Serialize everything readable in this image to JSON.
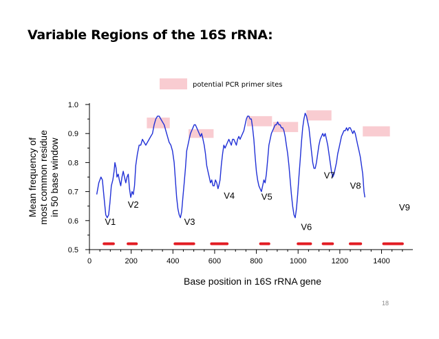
{
  "slide": {
    "title": "Variable Regions of the 16S rRNA:",
    "number": "18"
  },
  "colors": {
    "line": "#1f2fd6",
    "primer_bar": "#e21b22",
    "primer_box": "#f9ccd1",
    "axis": "#000000"
  },
  "chart_data": {
    "type": "line",
    "title": "",
    "xlabel": "Base position in 16S rRNA gene",
    "ylabel_lines": [
      "Mean frequency of",
      "most common residue",
      "in 50 base window"
    ],
    "xlim": [
      0,
      1550
    ],
    "ylim": [
      0.5,
      1.0
    ],
    "x_ticks": [
      0,
      200,
      400,
      600,
      800,
      1000,
      1200,
      1400
    ],
    "x_tick_labels": [
      "0",
      "200",
      "400",
      "600",
      "800",
      "1000",
      "1200",
      "1400"
    ],
    "y_ticks": [
      0.5,
      0.6,
      0.7,
      0.8,
      0.9,
      1.0
    ],
    "y_tick_labels": [
      "0.5",
      "0.6",
      "0.7",
      "0.8",
      "0.9",
      "1.0"
    ],
    "legend": {
      "label": "potential PCR primer sites",
      "placement": "top-center"
    },
    "series": [
      {
        "name": "Mean frequency",
        "points": [
          [
            35,
            0.69
          ],
          [
            45,
            0.73
          ],
          [
            55,
            0.75
          ],
          [
            62,
            0.74
          ],
          [
            70,
            0.68
          ],
          [
            78,
            0.62
          ],
          [
            85,
            0.61
          ],
          [
            92,
            0.62
          ],
          [
            98,
            0.66
          ],
          [
            105,
            0.72
          ],
          [
            112,
            0.74
          ],
          [
            118,
            0.77
          ],
          [
            122,
            0.8
          ],
          [
            128,
            0.78
          ],
          [
            132,
            0.75
          ],
          [
            138,
            0.76
          ],
          [
            143,
            0.74
          ],
          [
            150,
            0.72
          ],
          [
            156,
            0.75
          ],
          [
            162,
            0.77
          ],
          [
            168,
            0.75
          ],
          [
            174,
            0.73
          ],
          [
            180,
            0.75
          ],
          [
            186,
            0.76
          ],
          [
            192,
            0.71
          ],
          [
            198,
            0.68
          ],
          [
            204,
            0.7
          ],
          [
            210,
            0.69
          ],
          [
            216,
            0.72
          ],
          [
            222,
            0.79
          ],
          [
            230,
            0.83
          ],
          [
            238,
            0.86
          ],
          [
            246,
            0.86
          ],
          [
            254,
            0.88
          ],
          [
            262,
            0.87
          ],
          [
            270,
            0.86
          ],
          [
            278,
            0.87
          ],
          [
            286,
            0.88
          ],
          [
            294,
            0.89
          ],
          [
            302,
            0.9
          ],
          [
            310,
            0.93
          ],
          [
            318,
            0.95
          ],
          [
            326,
            0.96
          ],
          [
            334,
            0.96
          ],
          [
            342,
            0.95
          ],
          [
            350,
            0.94
          ],
          [
            358,
            0.93
          ],
          [
            366,
            0.91
          ],
          [
            374,
            0.89
          ],
          [
            382,
            0.87
          ],
          [
            390,
            0.86
          ],
          [
            398,
            0.84
          ],
          [
            406,
            0.8
          ],
          [
            412,
            0.74
          ],
          [
            418,
            0.68
          ],
          [
            424,
            0.64
          ],
          [
            430,
            0.62
          ],
          [
            436,
            0.61
          ],
          [
            442,
            0.63
          ],
          [
            448,
            0.68
          ],
          [
            454,
            0.73
          ],
          [
            460,
            0.78
          ],
          [
            466,
            0.84
          ],
          [
            472,
            0.86
          ],
          [
            478,
            0.88
          ],
          [
            484,
            0.9
          ],
          [
            490,
            0.91
          ],
          [
            496,
            0.92
          ],
          [
            502,
            0.93
          ],
          [
            508,
            0.93
          ],
          [
            514,
            0.92
          ],
          [
            520,
            0.91
          ],
          [
            526,
            0.9
          ],
          [
            532,
            0.89
          ],
          [
            538,
            0.9
          ],
          [
            544,
            0.88
          ],
          [
            550,
            0.86
          ],
          [
            556,
            0.83
          ],
          [
            562,
            0.79
          ],
          [
            568,
            0.77
          ],
          [
            574,
            0.75
          ],
          [
            580,
            0.73
          ],
          [
            586,
            0.74
          ],
          [
            592,
            0.72
          ],
          [
            598,
            0.72
          ],
          [
            604,
            0.74
          ],
          [
            610,
            0.73
          ],
          [
            616,
            0.71
          ],
          [
            620,
            0.72
          ],
          [
            626,
            0.74
          ],
          [
            632,
            0.79
          ],
          [
            638,
            0.83
          ],
          [
            644,
            0.86
          ],
          [
            650,
            0.85
          ],
          [
            656,
            0.86
          ],
          [
            662,
            0.87
          ],
          [
            668,
            0.88
          ],
          [
            674,
            0.87
          ],
          [
            680,
            0.86
          ],
          [
            686,
            0.88
          ],
          [
            692,
            0.88
          ],
          [
            698,
            0.87
          ],
          [
            704,
            0.86
          ],
          [
            710,
            0.88
          ],
          [
            716,
            0.89
          ],
          [
            722,
            0.88
          ],
          [
            728,
            0.89
          ],
          [
            734,
            0.9
          ],
          [
            740,
            0.91
          ],
          [
            746,
            0.93
          ],
          [
            752,
            0.95
          ],
          [
            758,
            0.96
          ],
          [
            764,
            0.96
          ],
          [
            770,
            0.95
          ],
          [
            776,
            0.95
          ],
          [
            782,
            0.92
          ],
          [
            788,
            0.88
          ],
          [
            794,
            0.82
          ],
          [
            800,
            0.77
          ],
          [
            806,
            0.74
          ],
          [
            812,
            0.72
          ],
          [
            818,
            0.71
          ],
          [
            824,
            0.7
          ],
          [
            830,
            0.72
          ],
          [
            836,
            0.74
          ],
          [
            842,
            0.73
          ],
          [
            848,
            0.76
          ],
          [
            854,
            0.81
          ],
          [
            860,
            0.86
          ],
          [
            866,
            0.88
          ],
          [
            872,
            0.9
          ],
          [
            878,
            0.91
          ],
          [
            884,
            0.92
          ],
          [
            890,
            0.93
          ],
          [
            896,
            0.93
          ],
          [
            902,
            0.94
          ],
          [
            908,
            0.93
          ],
          [
            914,
            0.93
          ],
          [
            920,
            0.92
          ],
          [
            926,
            0.92
          ],
          [
            932,
            0.91
          ],
          [
            938,
            0.89
          ],
          [
            944,
            0.86
          ],
          [
            950,
            0.83
          ],
          [
            956,
            0.79
          ],
          [
            962,
            0.74
          ],
          [
            968,
            0.69
          ],
          [
            974,
            0.65
          ],
          [
            980,
            0.62
          ],
          [
            986,
            0.61
          ],
          [
            992,
            0.64
          ],
          [
            998,
            0.69
          ],
          [
            1004,
            0.75
          ],
          [
            1010,
            0.81
          ],
          [
            1016,
            0.87
          ],
          [
            1022,
            0.92
          ],
          [
            1028,
            0.95
          ],
          [
            1034,
            0.97
          ],
          [
            1040,
            0.96
          ],
          [
            1046,
            0.94
          ],
          [
            1052,
            0.92
          ],
          [
            1058,
            0.88
          ],
          [
            1064,
            0.84
          ],
          [
            1070,
            0.8
          ],
          [
            1076,
            0.78
          ],
          [
            1082,
            0.78
          ],
          [
            1088,
            0.8
          ],
          [
            1094,
            0.83
          ],
          [
            1100,
            0.86
          ],
          [
            1106,
            0.88
          ],
          [
            1112,
            0.89
          ],
          [
            1118,
            0.9
          ],
          [
            1124,
            0.89
          ],
          [
            1130,
            0.9
          ],
          [
            1136,
            0.88
          ],
          [
            1142,
            0.86
          ],
          [
            1148,
            0.83
          ],
          [
            1154,
            0.8
          ],
          [
            1160,
            0.77
          ],
          [
            1166,
            0.75
          ],
          [
            1172,
            0.76
          ],
          [
            1178,
            0.78
          ],
          [
            1184,
            0.8
          ],
          [
            1190,
            0.83
          ],
          [
            1196,
            0.85
          ],
          [
            1202,
            0.87
          ],
          [
            1208,
            0.89
          ],
          [
            1214,
            0.9
          ],
          [
            1220,
            0.91
          ],
          [
            1226,
            0.91
          ],
          [
            1232,
            0.92
          ],
          [
            1238,
            0.91
          ],
          [
            1244,
            0.92
          ],
          [
            1250,
            0.92
          ],
          [
            1256,
            0.91
          ],
          [
            1262,
            0.9
          ],
          [
            1268,
            0.91
          ],
          [
            1274,
            0.9
          ],
          [
            1280,
            0.88
          ],
          [
            1286,
            0.86
          ],
          [
            1292,
            0.84
          ],
          [
            1298,
            0.82
          ],
          [
            1304,
            0.79
          ],
          [
            1310,
            0.76
          ],
          [
            1316,
            0.7
          ],
          [
            1320,
            0.68
          ]
        ]
      }
    ],
    "primer_sites": [
      {
        "start": 70,
        "end": 115
      },
      {
        "start": 185,
        "end": 225
      },
      {
        "start": 410,
        "end": 500
      },
      {
        "start": 585,
        "end": 660
      },
      {
        "start": 820,
        "end": 860
      },
      {
        "start": 1000,
        "end": 1060
      },
      {
        "start": 1120,
        "end": 1165
      },
      {
        "start": 1250,
        "end": 1300
      },
      {
        "start": 1410,
        "end": 1500
      }
    ],
    "primer_windows": [
      {
        "start": 275,
        "end": 385,
        "y_top": 0.955,
        "y_bottom": 0.918
      },
      {
        "start": 475,
        "end": 595,
        "y_top": 0.915,
        "y_bottom": 0.885
      },
      {
        "start": 755,
        "end": 875,
        "y_top": 0.96,
        "y_bottom": 0.925
      },
      {
        "start": 880,
        "end": 1000,
        "y_top": 0.94,
        "y_bottom": 0.905
      },
      {
        "start": 1040,
        "end": 1160,
        "y_top": 0.98,
        "y_bottom": 0.945
      },
      {
        "start": 1310,
        "end": 1440,
        "y_top": 0.925,
        "y_bottom": 0.89
      }
    ],
    "region_labels": [
      {
        "label": "V1",
        "x": 100,
        "y": 0.585
      },
      {
        "label": "V2",
        "x": 210,
        "y": 0.645
      },
      {
        "label": "V3",
        "x": 480,
        "y": 0.585
      },
      {
        "label": "V4",
        "x": 670,
        "y": 0.675
      },
      {
        "label": "V5",
        "x": 850,
        "y": 0.672
      },
      {
        "label": "V6",
        "x": 1040,
        "y": 0.568
      },
      {
        "label": "V7",
        "x": 1150,
        "y": 0.745
      },
      {
        "label": "V8",
        "x": 1275,
        "y": 0.71
      },
      {
        "label": "V9",
        "x": 1510,
        "y": 0.635
      }
    ]
  }
}
